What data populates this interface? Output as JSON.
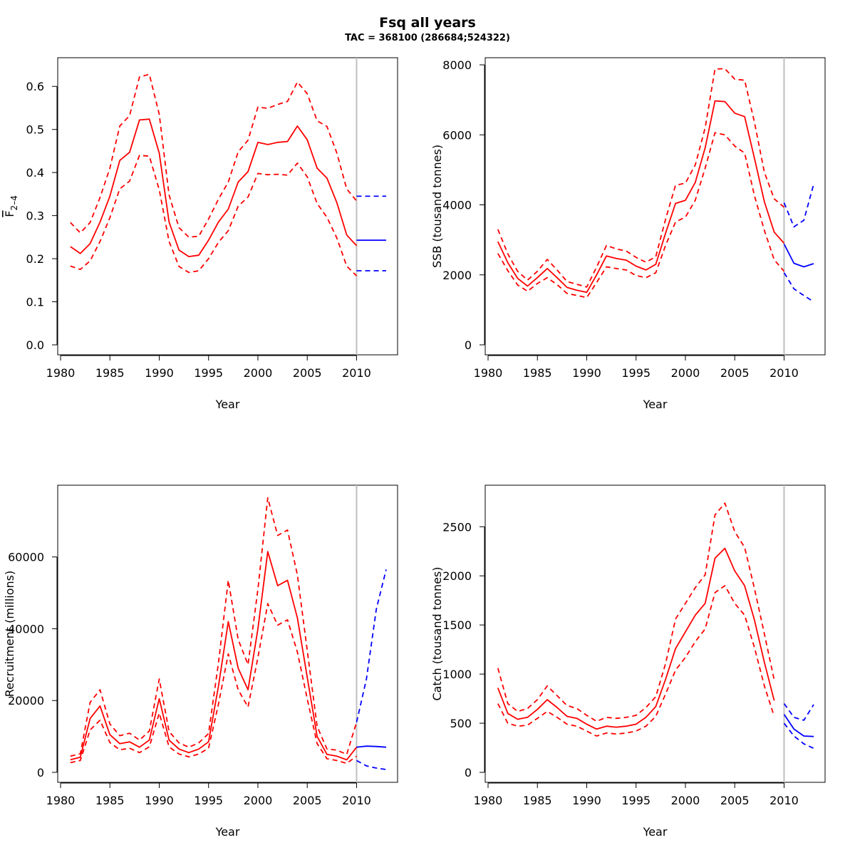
{
  "title": "Fsq all years",
  "subtitle": "TAC = 368100 (286684;524322)",
  "colors": {
    "estimate": "#ff0000",
    "forecast": "#0000ff",
    "divider": "#bebebe"
  },
  "chart_data": [
    {
      "id": "fbar",
      "type": "line",
      "xlabel": "Year",
      "ylabel": "F",
      "ylabel_sub": "2–4",
      "xlim": [
        1980,
        2013
      ],
      "ylim": [
        0,
        0.65
      ],
      "xticks": [
        1980,
        1985,
        1990,
        1995,
        2000,
        2005,
        2010
      ],
      "yticks": [
        0.0,
        0.1,
        0.2,
        0.3,
        0.4,
        0.5,
        0.6
      ],
      "ytick_labels": [
        "0.0",
        "0.1",
        "0.2",
        "0.3",
        "0.4",
        "0.5",
        "0.6"
      ],
      "divider_year": 2010,
      "historic": {
        "x": [
          1981,
          1982,
          1983,
          1984,
          1985,
          1986,
          1987,
          1988,
          1989,
          1990,
          1991,
          1992,
          1993,
          1994,
          1995,
          1996,
          1997,
          1998,
          1999,
          2000,
          2001,
          2002,
          2003,
          2004,
          2005,
          2006,
          2007,
          2008,
          2009,
          2010
        ],
        "mid": [
          0.228,
          0.212,
          0.235,
          0.285,
          0.345,
          0.428,
          0.447,
          0.522,
          0.524,
          0.445,
          0.285,
          0.22,
          0.205,
          0.208,
          0.243,
          0.285,
          0.315,
          0.378,
          0.402,
          0.47,
          0.465,
          0.47,
          0.472,
          0.508,
          0.476,
          0.41,
          0.387,
          0.33,
          0.255,
          0.23
        ],
        "lo": [
          0.183,
          0.175,
          0.195,
          0.24,
          0.295,
          0.362,
          0.38,
          0.44,
          0.438,
          0.36,
          0.24,
          0.182,
          0.168,
          0.172,
          0.2,
          0.238,
          0.265,
          0.322,
          0.343,
          0.398,
          0.395,
          0.396,
          0.394,
          0.422,
          0.39,
          0.328,
          0.296,
          0.248,
          0.183,
          0.16
        ],
        "hi": [
          0.284,
          0.26,
          0.284,
          0.342,
          0.41,
          0.508,
          0.532,
          0.622,
          0.628,
          0.535,
          0.348,
          0.272,
          0.25,
          0.252,
          0.292,
          0.338,
          0.378,
          0.448,
          0.475,
          0.552,
          0.549,
          0.558,
          0.565,
          0.61,
          0.583,
          0.52,
          0.507,
          0.445,
          0.362,
          0.334
        ]
      },
      "forecast": {
        "x": [
          2010,
          2013
        ],
        "mid": [
          0.243,
          0.243
        ],
        "lo": [
          0.172,
          0.172
        ],
        "hi": [
          0.345,
          0.345
        ]
      }
    },
    {
      "id": "ssb",
      "type": "line",
      "xlabel": "Year",
      "ylabel": "SSB (tousand tonnes)",
      "xlim": [
        1980,
        2013
      ],
      "ylim": [
        0,
        8000
      ],
      "xticks": [
        1980,
        1985,
        1990,
        1995,
        2000,
        2005,
        2010
      ],
      "yticks": [
        0,
        2000,
        4000,
        6000,
        8000
      ],
      "ytick_labels": [
        "0",
        "2000",
        "4000",
        "6000",
        "8000"
      ],
      "divider_year": 2010,
      "historic": {
        "x": [
          1981,
          1982,
          1983,
          1984,
          1985,
          1986,
          1987,
          1988,
          1989,
          1990,
          1991,
          1992,
          1993,
          1994,
          1995,
          1996,
          1997,
          1998,
          1999,
          2000,
          2001,
          2002,
          2003,
          2004,
          2005,
          2006,
          2007,
          2008,
          2009,
          2010
        ],
        "mid": [
          2950,
          2350,
          1900,
          1680,
          1920,
          2180,
          1920,
          1640,
          1560,
          1500,
          2000,
          2540,
          2470,
          2420,
          2250,
          2140,
          2300,
          3200,
          4040,
          4130,
          4640,
          5630,
          6970,
          6950,
          6620,
          6520,
          5330,
          4090,
          3220,
          2900
        ],
        "lo": [
          2610,
          2120,
          1710,
          1530,
          1750,
          1920,
          1720,
          1470,
          1410,
          1350,
          1780,
          2230,
          2180,
          2140,
          1980,
          1920,
          2060,
          2850,
          3510,
          3650,
          4130,
          5050,
          6060,
          6000,
          5680,
          5480,
          4260,
          3270,
          2430,
          2100
        ],
        "hi": [
          3300,
          2600,
          2100,
          1850,
          2100,
          2440,
          2140,
          1810,
          1730,
          1650,
          2220,
          2840,
          2740,
          2680,
          2500,
          2360,
          2520,
          3600,
          4560,
          4620,
          5140,
          6200,
          7880,
          7890,
          7590,
          7560,
          6360,
          4930,
          4170,
          3930
        ]
      },
      "forecast": {
        "x": [
          2010,
          2011,
          2012,
          2013
        ],
        "mid": [
          2880,
          2330,
          2230,
          2320
        ],
        "lo": [
          2060,
          1600,
          1410,
          1230
        ],
        "hi": [
          4060,
          3370,
          3560,
          4590
        ]
      }
    },
    {
      "id": "recruitment",
      "type": "line",
      "xlabel": "Year",
      "ylabel": "Recruitment (millions)",
      "xlim": [
        1980,
        2013
      ],
      "ylim": [
        0,
        78000
      ],
      "xticks": [
        1980,
        1985,
        1990,
        1995,
        2000,
        2005,
        2010
      ],
      "yticks": [
        0,
        20000,
        40000,
        60000
      ],
      "ytick_labels": [
        "0",
        "20000",
        "40000",
        "60000"
      ],
      "divider_year": 2010,
      "historic": {
        "x": [
          1981,
          1982,
          1983,
          1984,
          1985,
          1986,
          1987,
          1988,
          1989,
          1990,
          1991,
          1992,
          1993,
          1994,
          1995,
          1996,
          1997,
          1998,
          1999,
          2000,
          2001,
          2002,
          2003,
          2004,
          2005,
          2006,
          2007,
          2008,
          2009,
          2010
        ],
        "mid": [
          3500,
          4200,
          15000,
          18500,
          10500,
          8000,
          8500,
          7000,
          9000,
          20500,
          9000,
          6500,
          5500,
          6500,
          8500,
          24000,
          42000,
          29000,
          23000,
          40000,
          61500,
          52000,
          53500,
          43000,
          26500,
          10000,
          5000,
          4500,
          3500,
          7000
        ],
        "lo": [
          2700,
          3300,
          11800,
          14500,
          8300,
          6300,
          6700,
          5500,
          7100,
          16500,
          7100,
          5100,
          4300,
          5100,
          6700,
          19000,
          33000,
          23000,
          18200,
          32000,
          47000,
          41000,
          42500,
          33500,
          20500,
          8000,
          3800,
          3300,
          2500,
          4500
        ],
        "hi": [
          4500,
          5200,
          19500,
          23000,
          13500,
          10200,
          10900,
          9000,
          11500,
          26000,
          11400,
          8200,
          7000,
          8200,
          10800,
          30500,
          53500,
          37000,
          30000,
          51000,
          76500,
          66000,
          67500,
          55000,
          34000,
          12800,
          6500,
          6200,
          5000,
          14000
        ]
      },
      "forecast": {
        "x": [
          2010,
          2011,
          2012,
          2013
        ],
        "mid": [
          7000,
          7300,
          7200,
          7000
        ],
        "lo": [
          3300,
          1800,
          1200,
          800
        ],
        "hi": [
          14000,
          26000,
          45500,
          56500
        ]
      }
    },
    {
      "id": "catch",
      "type": "line",
      "xlabel": "Year",
      "ylabel": "Catch (tousand tonnes)",
      "xlim": [
        1980,
        2013
      ],
      "ylim": [
        0,
        2850
      ],
      "xticks": [
        1980,
        1985,
        1990,
        1995,
        2000,
        2005,
        2010
      ],
      "yticks": [
        0,
        500,
        1000,
        1500,
        2000,
        2500
      ],
      "ytick_labels": [
        "0",
        "500",
        "1000",
        "1500",
        "2000",
        "2500"
      ],
      "divider_year": 2010,
      "historic": {
        "x": [
          1981,
          1982,
          1983,
          1984,
          1985,
          1986,
          1987,
          1988,
          1989,
          1990,
          1991,
          1992,
          1993,
          1994,
          1995,
          1996,
          1997,
          1998,
          1999,
          2000,
          2001,
          2002,
          2003,
          2004,
          2005,
          2006,
          2007,
          2008,
          2009
        ],
        "mid": [
          860,
          600,
          540,
          560,
          640,
          740,
          660,
          570,
          550,
          490,
          440,
          470,
          460,
          470,
          490,
          560,
          670,
          950,
          1260,
          1430,
          1600,
          1720,
          2180,
          2280,
          2050,
          1900,
          1550,
          1120,
          730
        ],
        "lo": [
          700,
          500,
          470,
          480,
          550,
          620,
          560,
          490,
          470,
          420,
          370,
          400,
          390,
          400,
          420,
          470,
          570,
          800,
          1040,
          1170,
          1330,
          1460,
          1830,
          1900,
          1720,
          1600,
          1270,
          880,
          570
        ],
        "hi": [
          1060,
          700,
          620,
          650,
          740,
          880,
          780,
          680,
          650,
          580,
          520,
          560,
          550,
          560,
          580,
          660,
          770,
          1110,
          1560,
          1720,
          1880,
          2010,
          2620,
          2740,
          2450,
          2290,
          1870,
          1410,
          940
        ]
      },
      "forecast": {
        "x": [
          2010,
          2011,
          2012,
          2013
        ],
        "mid": [
          590,
          440,
          370,
          365
        ],
        "lo": [
          500,
          370,
          290,
          245
        ],
        "hi": [
          700,
          560,
          530,
          690
        ]
      }
    }
  ]
}
